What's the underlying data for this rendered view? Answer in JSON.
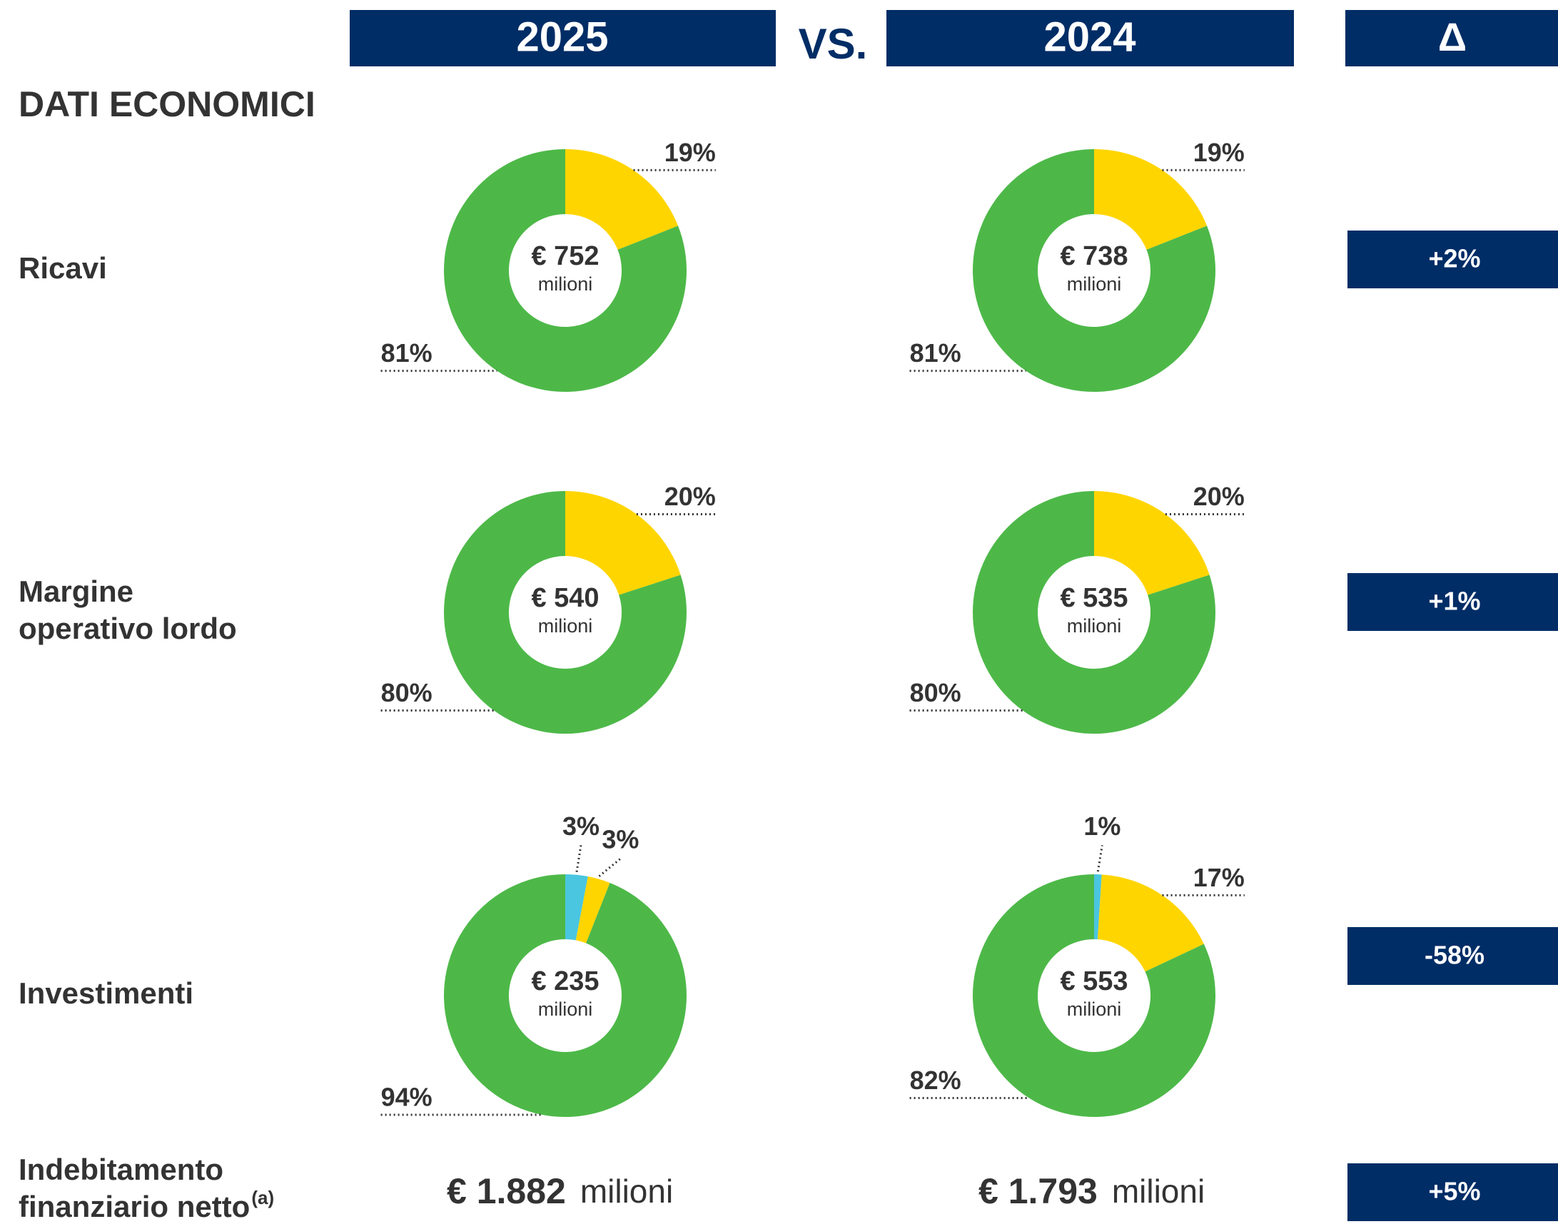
{
  "header": {
    "current": "2025",
    "vs": "VS.",
    "previous": "2024",
    "delta": "Δ"
  },
  "section_title": "DATI ECONOMICI",
  "rows": [
    {
      "label": [
        "Ricavi"
      ],
      "delta": "+2%"
    },
    {
      "label": [
        "Margine",
        "operativo lordo"
      ],
      "delta": "+1%"
    },
    {
      "label": [
        "Investimenti"
      ],
      "delta": "-58%"
    },
    {
      "label": [
        "Indebitamento",
        "finanziario netto"
      ],
      "note": "(a)",
      "delta": "+5%",
      "current": "€ 1.882",
      "current_unit": "milioni",
      "previous": "€ 1.793",
      "previous_unit": "milioni"
    }
  ],
  "chart_data": [
    {
      "type": "pie",
      "donut": true,
      "center_value": "€ 752",
      "center_unit": "milioni",
      "values": [
        19,
        81
      ],
      "value_labels": [
        "19%",
        "81%"
      ],
      "colors": [
        "#ffd500",
        "#4db848"
      ]
    },
    {
      "type": "pie",
      "donut": true,
      "center_value": "€ 738",
      "center_unit": "milioni",
      "values": [
        19,
        81
      ],
      "value_labels": [
        "19%",
        "81%"
      ],
      "colors": [
        "#ffd500",
        "#4db848"
      ]
    },
    {
      "type": "pie",
      "donut": true,
      "center_value": "€ 540",
      "center_unit": "milioni",
      "values": [
        20,
        80
      ],
      "value_labels": [
        "20%",
        "80%"
      ],
      "colors": [
        "#ffd500",
        "#4db848"
      ]
    },
    {
      "type": "pie",
      "donut": true,
      "center_value": "€ 535",
      "center_unit": "milioni",
      "values": [
        20,
        80
      ],
      "value_labels": [
        "20%",
        "80%"
      ],
      "colors": [
        "#ffd500",
        "#4db848"
      ]
    },
    {
      "type": "pie",
      "donut": true,
      "center_value": "€ 235",
      "center_unit": "milioni",
      "values": [
        3,
        3,
        94
      ],
      "value_labels": [
        "3%",
        "3%",
        "94%"
      ],
      "colors": [
        "#4ac6e0",
        "#ffd500",
        "#4db848"
      ]
    },
    {
      "type": "pie",
      "donut": true,
      "center_value": "€ 553",
      "center_unit": "milioni",
      "values": [
        1,
        17,
        82
      ],
      "value_labels": [
        "1%",
        "17%",
        "82%"
      ],
      "colors": [
        "#4ac6e0",
        "#ffd500",
        "#4db848"
      ]
    }
  ]
}
